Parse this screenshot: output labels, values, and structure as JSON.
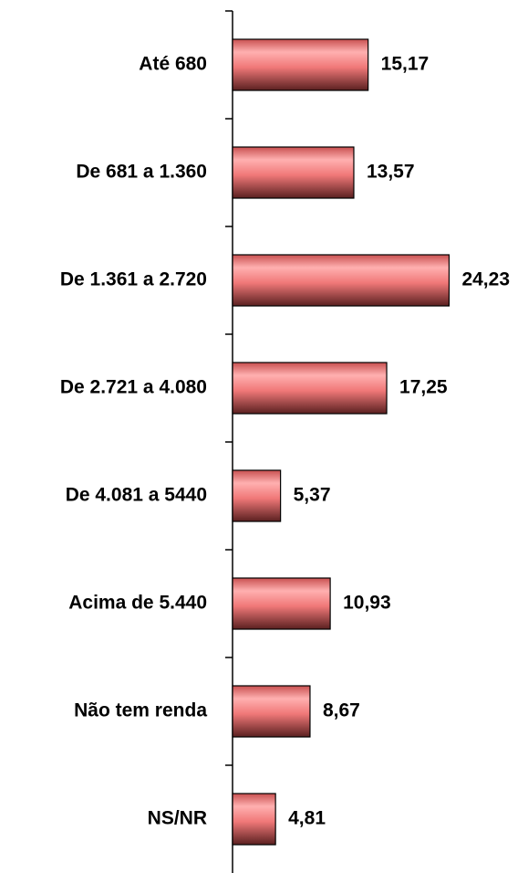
{
  "chart_data": {
    "type": "bar",
    "orientation": "horizontal",
    "categories": [
      "Até 680",
      "De 681 a 1.360",
      "De 1.361 a 2.720",
      "De 2.721 a 4.080",
      "De 4.081 a 5440",
      "Acima de 5.440",
      "Não tem renda",
      "NS/NR"
    ],
    "values": [
      15.17,
      13.57,
      24.23,
      17.25,
      5.37,
      10.93,
      8.67,
      4.81
    ],
    "value_labels": [
      "15,17",
      "13,57",
      "24,23",
      "17,25",
      "5,37",
      "10,93",
      "8,67",
      "4,81"
    ],
    "color": "#f07878",
    "xlim": [
      0,
      30
    ]
  }
}
